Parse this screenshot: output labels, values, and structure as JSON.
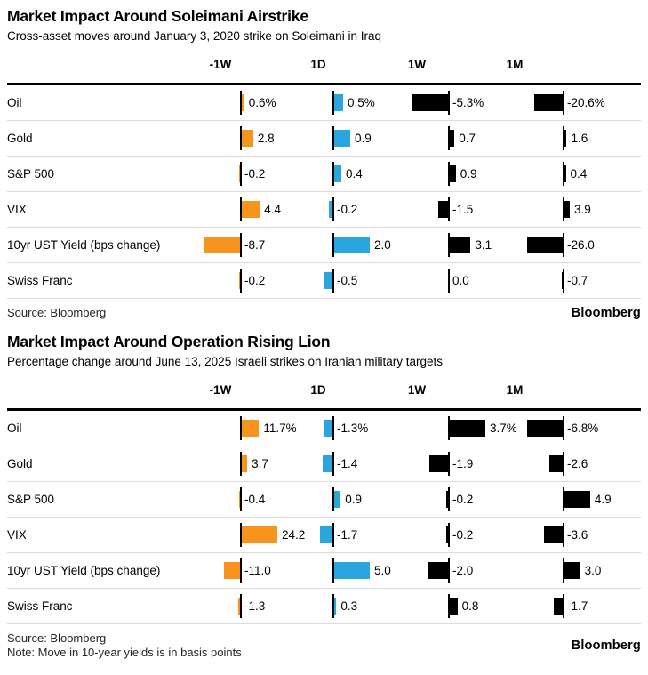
{
  "colors": {
    "orange": "#F7941E",
    "blue": "#2AA5DE",
    "black": "#000000",
    "separator": "#dcdcdc",
    "rule": "#000000"
  },
  "chart_data": [
    {
      "type": "bar",
      "orientation": "horizontal",
      "title": "Market Impact Around Soleimani Airstrike",
      "subtitle": "Cross-asset moves around January 3, 2020 strike on Soleimani in Iraq",
      "columns": [
        "-1W",
        "1D",
        "1W",
        "1M"
      ],
      "column_colors": [
        "#F7941E",
        "#2AA5DE",
        "#000000",
        "#000000"
      ],
      "categories": [
        "Oil",
        "Gold",
        "S&P 500",
        "VIX",
        "10yr UST Yield (bps change)",
        "Swiss Franc"
      ],
      "series": [
        {
          "name": "-1W",
          "values": [
            0.6,
            2.8,
            -0.2,
            4.4,
            -8.7,
            -0.2
          ],
          "labels": [
            "0.6%",
            "2.8",
            "-0.2",
            "4.4",
            "-8.7",
            "-0.2"
          ]
        },
        {
          "name": "1D",
          "values": [
            0.5,
            0.9,
            0.4,
            -0.2,
            2.0,
            -0.5
          ],
          "labels": [
            "0.5%",
            "0.9",
            "0.4",
            "-0.2",
            "2.0",
            "-0.5"
          ]
        },
        {
          "name": "1W",
          "values": [
            -5.3,
            0.7,
            0.9,
            -1.5,
            3.1,
            0.0
          ],
          "labels": [
            "-5.3%",
            "0.7",
            "0.9",
            "-1.5",
            "3.1",
            "0.0"
          ]
        },
        {
          "name": "1M",
          "values": [
            -20.6,
            1.6,
            0.4,
            3.9,
            -26.0,
            -0.7
          ],
          "labels": [
            "-20.6%",
            "1.6",
            "0.4",
            "3.9",
            "-26.0",
            "-0.7"
          ]
        }
      ],
      "source": "Source: Bloomberg",
      "brand": "Bloomberg"
    },
    {
      "type": "bar",
      "orientation": "horizontal",
      "title": "Market Impact Around Operation Rising Lion",
      "subtitle": "Percentage change around June 13, 2025 Israeli strikes on Iranian military targets",
      "columns": [
        "-1W",
        "1D",
        "1W",
        "1M"
      ],
      "column_colors": [
        "#F7941E",
        "#2AA5DE",
        "#000000",
        "#000000"
      ],
      "categories": [
        "Oil",
        "Gold",
        "S&P 500",
        "VIX",
        "10yr UST Yield (bps change)",
        "Swiss Franc"
      ],
      "series": [
        {
          "name": "-1W",
          "values": [
            11.7,
            3.7,
            -0.4,
            24.2,
            -11.0,
            -1.3
          ],
          "labels": [
            "11.7%",
            "3.7",
            "-0.4",
            "24.2",
            "-11.0",
            "-1.3"
          ]
        },
        {
          "name": "1D",
          "values": [
            -1.3,
            -1.4,
            0.9,
            -1.7,
            5.0,
            0.3
          ],
          "labels": [
            "-1.3%",
            "-1.4",
            "0.9",
            "-1.7",
            "5.0",
            "0.3"
          ]
        },
        {
          "name": "1W",
          "values": [
            3.7,
            -1.9,
            -0.2,
            -0.2,
            -2.0,
            0.8
          ],
          "labels": [
            "3.7%",
            "-1.9",
            "-0.2",
            "-0.2",
            "-2.0",
            "0.8"
          ]
        },
        {
          "name": "1M",
          "values": [
            -6.8,
            -2.6,
            4.9,
            -3.6,
            3.0,
            -1.7
          ],
          "labels": [
            "-6.8%",
            "-2.6",
            "4.9",
            "-3.6",
            "3.0",
            "-1.7"
          ]
        }
      ],
      "source": "Source: Bloomberg",
      "note": "Note: Move in 10-year yields is in basis points",
      "brand": "Bloomberg"
    }
  ]
}
